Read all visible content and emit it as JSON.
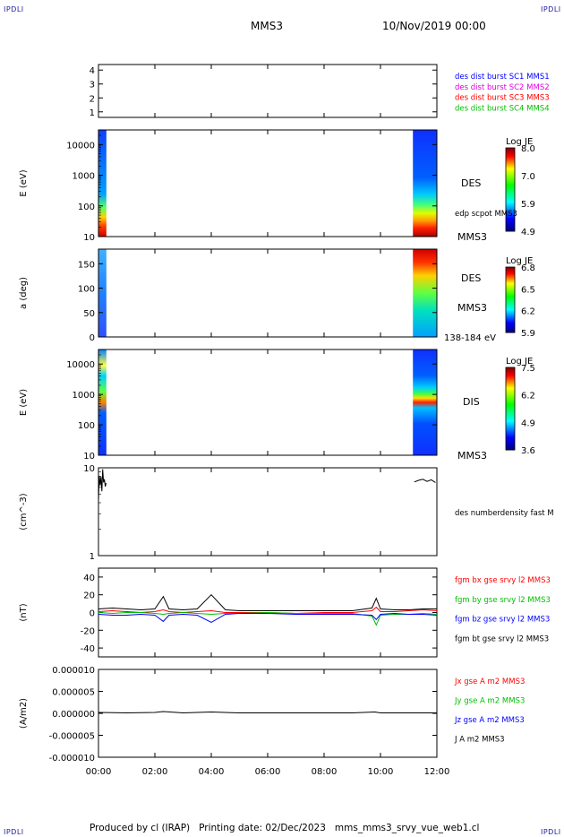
{
  "corner_label": "IPDLI",
  "header": {
    "spacecraft": "MMS3",
    "datetime": "10/Nov/2019 00:00"
  },
  "footer": {
    "text": "Produced by cl (IRAP)   Printing date: 02/Dec/2023   mms_mms3_srvy_vue_web1.cl"
  },
  "colors": {
    "blue": "#0000ff",
    "magenta": "#e000e0",
    "red": "#ff0000",
    "green": "#00c000",
    "black": "#000000"
  },
  "chart_data": [
    {
      "type": "line",
      "panel": "coverage",
      "yticks": [
        "1",
        "2",
        "3",
        "4"
      ],
      "ylim": [
        0.6,
        4.4
      ],
      "legend": [
        {
          "text": "des dist burst SC1 MMS1",
          "color": "#0000ff"
        },
        {
          "text": "des dist burst SC2 MMS2",
          "color": "#e000e0"
        },
        {
          "text": "des dist burst SC3 MMS3",
          "color": "#ff0000"
        },
        {
          "text": "des dist burst SC4 MMS4",
          "color": "#00c000"
        }
      ]
    },
    {
      "type": "heatmap",
      "panel": "des-energy",
      "ylabel": "E (eV)",
      "yscale": "log",
      "yticks": [
        "10",
        "100",
        "1000",
        "10000"
      ],
      "ylim": [
        10,
        30000
      ],
      "colorbar": {
        "title": "Log JE",
        "ticks": [
          "8.0",
          "7.0",
          "5.9",
          "4.9"
        ]
      },
      "right_labels": [
        "DES",
        "edp scpot MMS3",
        "MMS3"
      ],
      "data_intervals_h": [
        [
          0.0,
          0.28
        ],
        [
          11.15,
          12.0
        ]
      ]
    },
    {
      "type": "heatmap",
      "panel": "des-pitch",
      "ylabel": "a (deg)",
      "yticks": [
        "0",
        "50",
        "100",
        "150"
      ],
      "ylim": [
        0,
        180
      ],
      "colorbar": {
        "title": "Log JE",
        "ticks": [
          "6.8",
          "6.5",
          "6.2",
          "5.9"
        ]
      },
      "right_labels": [
        "DES",
        "MMS3",
        "138-184 eV"
      ],
      "data_intervals_h": [
        [
          0.0,
          0.28
        ],
        [
          11.15,
          12.0
        ]
      ]
    },
    {
      "type": "heatmap",
      "panel": "dis-energy",
      "ylabel": "E (eV)",
      "yscale": "log",
      "yticks": [
        "10",
        "100",
        "1000",
        "10000"
      ],
      "ylim": [
        10,
        30000
      ],
      "colorbar": {
        "title": "Log JE",
        "ticks": [
          "7.5",
          "6.2",
          "4.9",
          "3.6"
        ]
      },
      "right_labels": [
        "DIS",
        "MMS3"
      ],
      "data_intervals_h": [
        [
          0.0,
          0.28
        ],
        [
          11.15,
          12.0
        ]
      ]
    },
    {
      "type": "line",
      "panel": "density",
      "ylabel": "(cm^-3)",
      "yscale": "log",
      "yticks": [
        "1",
        "10"
      ],
      "ylim": [
        1,
        10
      ],
      "legend": [
        {
          "text": "des numberdensity fast M",
          "color": "#000000"
        }
      ],
      "series": [
        {
          "name": "des numberdensity fast M",
          "color": "#000000",
          "segments": [
            {
              "x": [
                0.0,
                0.03,
                0.06,
                0.09,
                0.12,
                0.15,
                0.18,
                0.21,
                0.24,
                0.27
              ],
              "y": [
                4.2,
                8.1,
                6.3,
                7.9,
                5.4,
                9.6,
                6.8,
                7.4,
                6.1,
                6.7
              ]
            },
            {
              "x": [
                11.2,
                11.35,
                11.5,
                11.65,
                11.8,
                11.95
              ],
              "y": [
                6.9,
                7.2,
                7.4,
                7.0,
                7.3,
                6.8
              ]
            }
          ]
        }
      ]
    },
    {
      "type": "line",
      "panel": "magnetic-field",
      "ylabel": "(nT)",
      "yticks": [
        "-40",
        "-20",
        "0",
        "20",
        "40"
      ],
      "ylim": [
        -50,
        50
      ],
      "legend": [
        {
          "text": "fgm bx gse srvy l2 MMS3",
          "color": "#ff0000"
        },
        {
          "text": "fgm by gse srvy l2 MMS3",
          "color": "#00c000"
        },
        {
          "text": "fgm bz gse srvy l2 MMS3",
          "color": "#0000ff"
        },
        {
          "text": "fgm bt gse srvy l2 MMS3",
          "color": "#000000"
        }
      ],
      "series": [
        {
          "name": "fgm bx gse srvy l2 MMS3",
          "color": "#ff0000",
          "x": [
            0,
            0.5,
            1,
            1.5,
            2,
            2.3,
            2.5,
            3,
            3.5,
            4,
            4.5,
            5,
            6,
            7,
            8,
            9,
            9.7,
            9.85,
            10,
            10.5,
            11,
            11.5,
            12
          ],
          "y": [
            1,
            2,
            1,
            0,
            1,
            3,
            1,
            0,
            1,
            2,
            0,
            0,
            0,
            -1,
            0,
            0,
            2,
            6,
            1,
            1,
            2,
            3,
            2
          ]
        },
        {
          "name": "fgm by gse srvy l2 MMS3",
          "color": "#00c000",
          "x": [
            0,
            0.5,
            1,
            1.5,
            2,
            2.3,
            2.5,
            3,
            3.5,
            4,
            4.5,
            5,
            6,
            7,
            8,
            9,
            9.7,
            9.85,
            10,
            10.5,
            11,
            11.5,
            12
          ],
          "y": [
            0,
            -1,
            0,
            0,
            -1,
            -2,
            -1,
            0,
            -1,
            -2,
            -1,
            -1,
            0,
            -1,
            -1,
            -1,
            -4,
            -14,
            -3,
            -2,
            -2,
            -1,
            -2
          ]
        },
        {
          "name": "fgm bz gse srvy l2 MMS3",
          "color": "#0000ff",
          "x": [
            0,
            0.5,
            1,
            1.5,
            2,
            2.3,
            2.5,
            3,
            3.5,
            4,
            4.5,
            5,
            6,
            7,
            8,
            9,
            9.7,
            9.85,
            10,
            10.5,
            11,
            11.5,
            12
          ],
          "y": [
            -2,
            -3,
            -3,
            -2,
            -3,
            -10,
            -3,
            -2,
            -3,
            -11,
            -2,
            -1,
            -1,
            -2,
            -2,
            -2,
            -3,
            -8,
            -2,
            -1,
            -2,
            -2,
            -3
          ]
        },
        {
          "name": "fgm bt gse srvy l2 MMS3",
          "color": "#000000",
          "x": [
            0,
            0.5,
            1,
            1.5,
            2,
            2.3,
            2.5,
            3,
            3.5,
            4,
            4.5,
            5,
            6,
            7,
            8,
            9,
            9.7,
            9.85,
            10,
            10.5,
            11,
            11.5,
            12
          ],
          "y": [
            4,
            5,
            4,
            3,
            4,
            18,
            4,
            3,
            4,
            20,
            3,
            2,
            2,
            2,
            2,
            2,
            5,
            16,
            4,
            3,
            3,
            4,
            4
          ]
        }
      ]
    },
    {
      "type": "line",
      "panel": "current-density",
      "ylabel": "(A/m2)",
      "yticks": [
        "-0.000010",
        "-0.000005",
        "0.000000",
        "0.000005",
        "0.000010"
      ],
      "ylim": [
        -1e-05,
        1e-05
      ],
      "legend": [
        {
          "text": "Jx gse A m2 MMS3",
          "color": "#ff0000"
        },
        {
          "text": "Jy gse A m2 MMS3",
          "color": "#00c000"
        },
        {
          "text": "Jz gse A m2 MMS3",
          "color": "#0000ff"
        },
        {
          "text": "J A m2 MMS3",
          "color": "#000000"
        }
      ],
      "series": [
        {
          "name": "J A m2 MMS3",
          "color": "#000000",
          "x": [
            0,
            1,
            2,
            2.3,
            3,
            4,
            5,
            6,
            7,
            8,
            9,
            9.8,
            10,
            11,
            12
          ],
          "y": [
            2e-07,
            1e-07,
            2e-07,
            4e-07,
            1e-07,
            3e-07,
            1e-07,
            1e-07,
            1e-07,
            1e-07,
            1e-07,
            3e-07,
            1e-07,
            1e-07,
            1e-07
          ]
        }
      ]
    }
  ],
  "xaxis": {
    "ticks": [
      "00:00",
      "02:00",
      "04:00",
      "06:00",
      "08:00",
      "10:00",
      "12:00"
    ],
    "xlim_h": [
      0,
      12
    ]
  }
}
